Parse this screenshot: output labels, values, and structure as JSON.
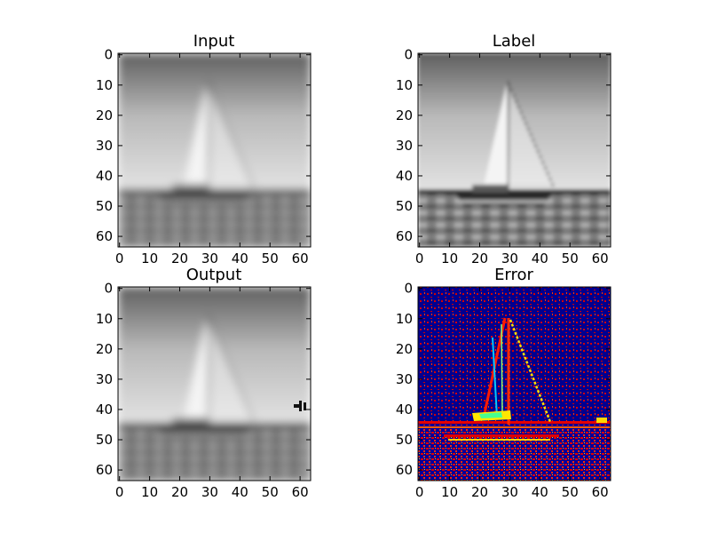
{
  "chart_data": [
    {
      "type": "heatmap",
      "title": "Input",
      "colormap": "gray",
      "xlim": [
        0,
        63
      ],
      "ylim": [
        63,
        0
      ],
      "xticks": [
        0,
        10,
        20,
        30,
        40,
        50,
        60
      ],
      "yticks": [
        0,
        10,
        20,
        30,
        40,
        50,
        60
      ],
      "image_size": [
        64,
        64
      ],
      "image_content": "grayscale 64x64 photo of a sailboat on water, slightly blurred low-resolution version"
    },
    {
      "type": "heatmap",
      "title": "Label",
      "colormap": "gray",
      "xlim": [
        0,
        63
      ],
      "ylim": [
        63,
        0
      ],
      "xticks": [
        0,
        10,
        20,
        30,
        40,
        50,
        60
      ],
      "yticks": [
        0,
        10,
        20,
        30,
        40,
        50,
        60
      ],
      "image_size": [
        64,
        64
      ],
      "image_content": "grayscale 64x64 ground-truth photo of a sailboat on water, sharp"
    },
    {
      "type": "heatmap",
      "title": "Output",
      "colormap": "gray",
      "xlim": [
        0,
        63
      ],
      "ylim": [
        63,
        0
      ],
      "xticks": [
        0,
        10,
        20,
        30,
        40,
        50,
        60
      ],
      "yticks": [
        0,
        10,
        20,
        30,
        40,
        50,
        60
      ],
      "image_size": [
        64,
        64
      ],
      "image_content": "grayscale 64x64 reconstructed photo of a sailboat, blurred with small dark artifact near right edge"
    },
    {
      "type": "heatmap",
      "title": "Error",
      "colormap": "jet",
      "xlim": [
        0,
        63
      ],
      "ylim": [
        63,
        0
      ],
      "xticks": [
        0,
        10,
        20,
        30,
        40,
        50,
        60
      ],
      "yticks": [
        0,
        10,
        20,
        30,
        40,
        50,
        60
      ],
      "image_size": [
        64,
        64
      ],
      "image_content": "64x64 per-pixel error map, mostly dark blue background with red/yellow speckles and high error along sail edges, mast and horizon"
    }
  ]
}
